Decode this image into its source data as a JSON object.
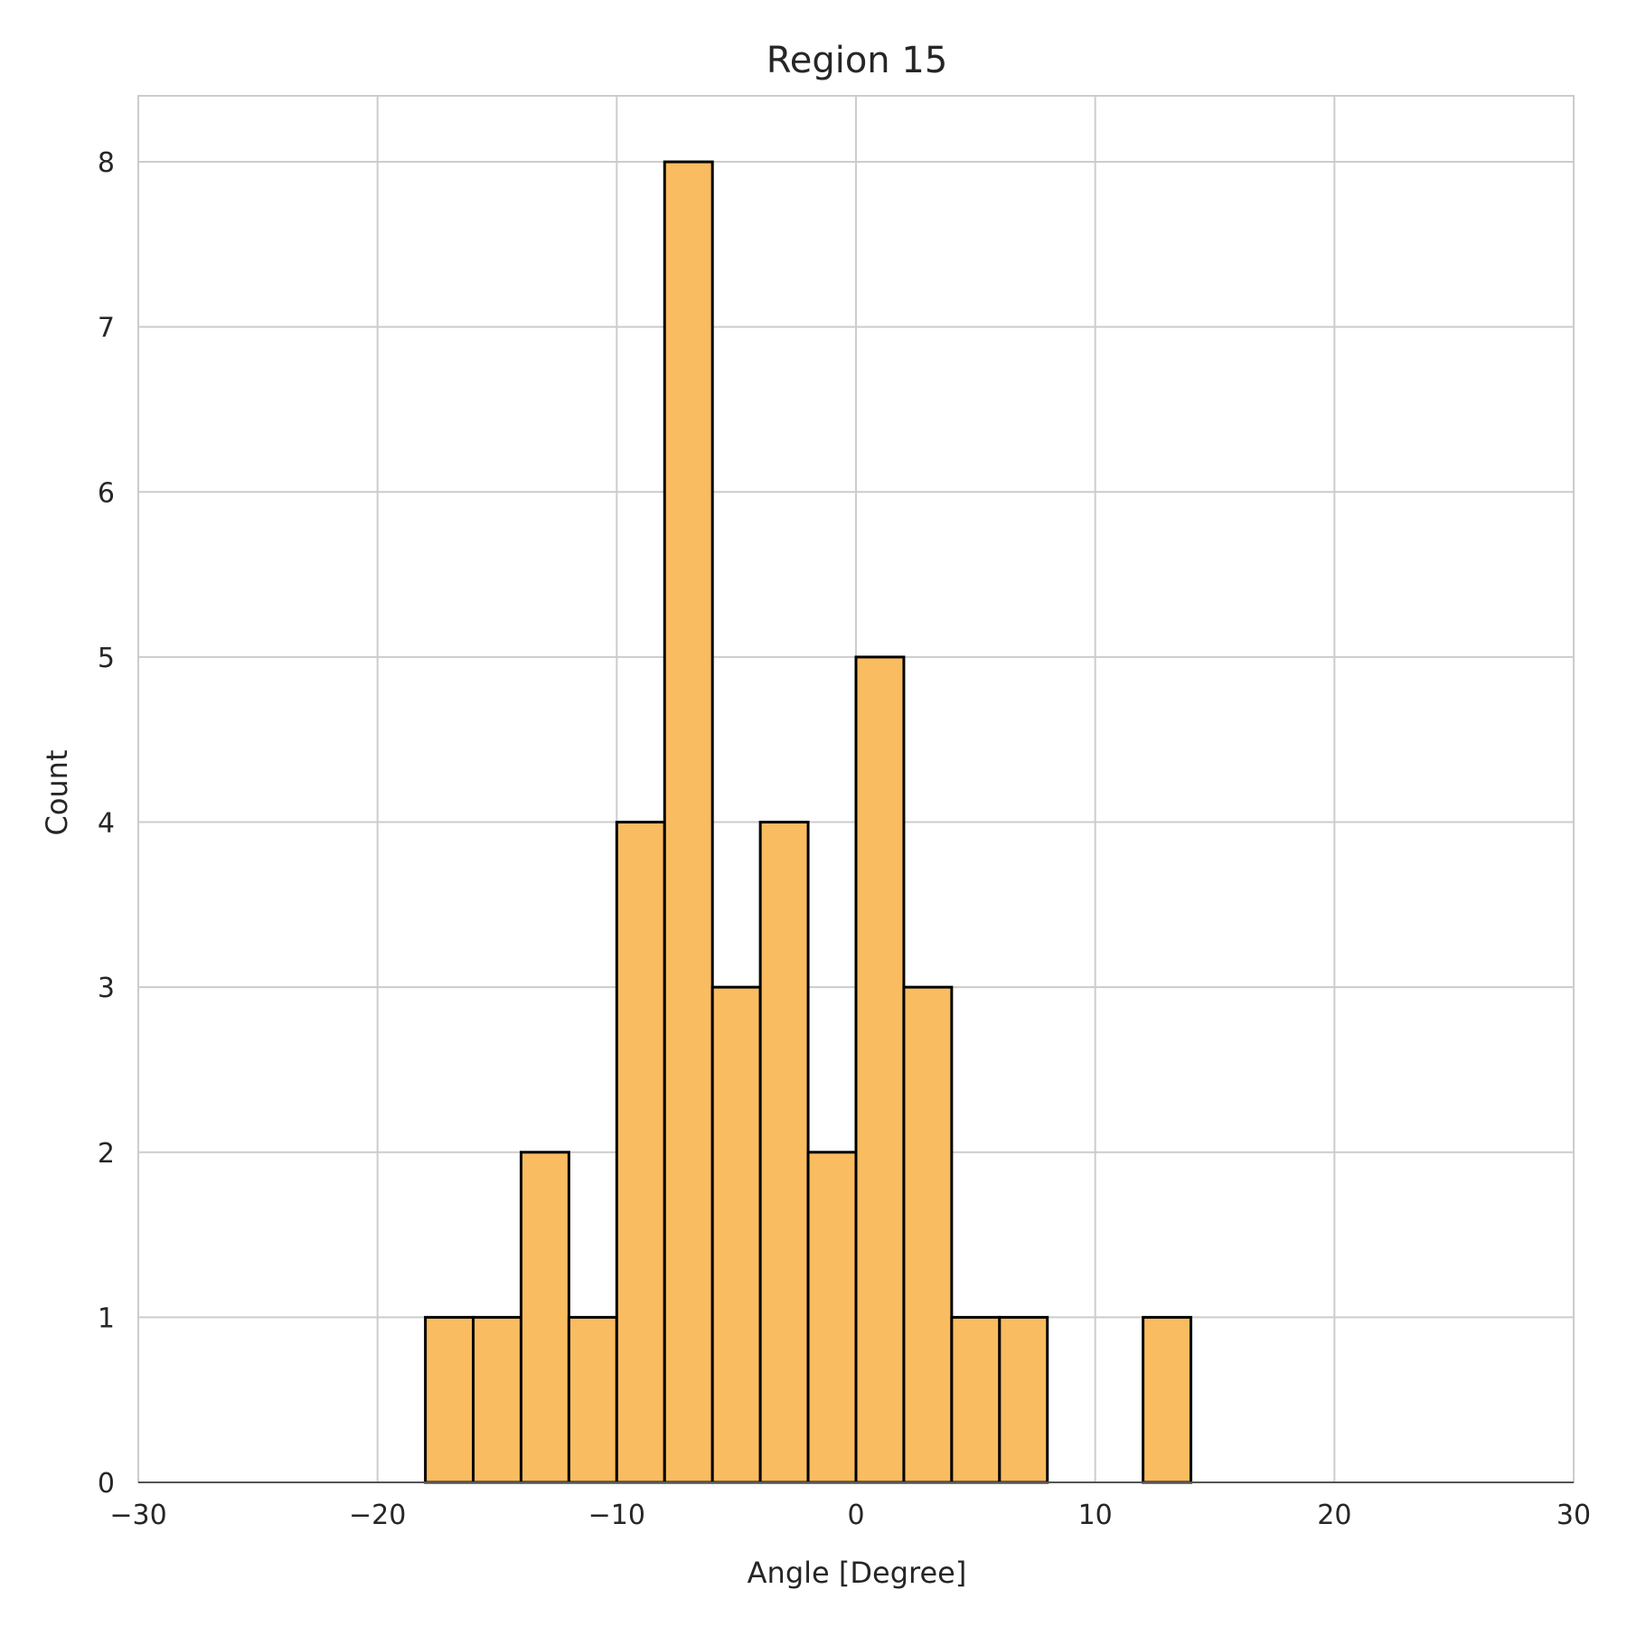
{
  "chart_data": {
    "type": "bar",
    "title": "Region 15",
    "xlabel": "Angle [Degree]",
    "ylabel": "Count",
    "xlim": [
      -30,
      30
    ],
    "ylim": [
      0,
      8.4
    ],
    "xticks": [
      -30,
      -20,
      -10,
      0,
      10,
      20,
      30
    ],
    "xtick_labels": [
      "−30",
      "−20",
      "−10",
      "0",
      "10",
      "20",
      "30"
    ],
    "yticks": [
      0,
      1,
      2,
      3,
      4,
      5,
      6,
      7,
      8
    ],
    "ytick_labels": [
      "0",
      "1",
      "2",
      "3",
      "4",
      "5",
      "6",
      "7",
      "8"
    ],
    "grid": true,
    "bin_width": 2,
    "bins": [
      {
        "left": -18,
        "right": -16,
        "count": 1
      },
      {
        "left": -16,
        "right": -14,
        "count": 1
      },
      {
        "left": -14,
        "right": -12,
        "count": 2
      },
      {
        "left": -12,
        "right": -10,
        "count": 1
      },
      {
        "left": -10,
        "right": -8,
        "count": 4
      },
      {
        "left": -8,
        "right": -6,
        "count": 8
      },
      {
        "left": -6,
        "right": -4,
        "count": 3
      },
      {
        "left": -4,
        "right": -2,
        "count": 4
      },
      {
        "left": -2,
        "right": 0,
        "count": 2
      },
      {
        "left": 0,
        "right": 2,
        "count": 5
      },
      {
        "left": 2,
        "right": 4,
        "count": 3
      },
      {
        "left": 4,
        "right": 6,
        "count": 1
      },
      {
        "left": 6,
        "right": 8,
        "count": 1
      },
      {
        "left": 12,
        "right": 14,
        "count": 1
      }
    ],
    "colors": {
      "bar_fill": "#f9bc60",
      "bar_edge": "#000000",
      "grid": "#cccccc",
      "frame": "#cccccc"
    }
  }
}
